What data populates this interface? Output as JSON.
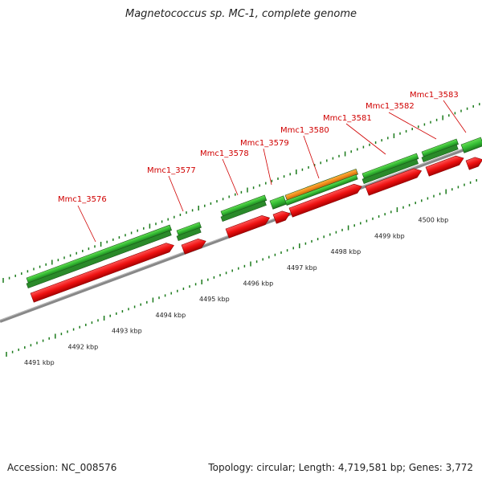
{
  "title": "Magnetococcus sp. MC-1, complete genome",
  "footer": {
    "accession": "Accession: NC_008576",
    "stats": "Topology: circular; Length: 4,719,581 bp; Genes: 3,772"
  },
  "scale": {
    "tick_labels": [
      "4491 kbp",
      "4492 kbp",
      "4493 kbp",
      "4494 kbp",
      "4495 kbp",
      "4496 kbp",
      "4497 kbp",
      "4498 kbp",
      "4499 kbp",
      "4500 kbp"
    ]
  },
  "gene_labels": [
    "Mmc1_3576",
    "Mmc1_3577",
    "Mmc1_3578",
    "Mmc1_3579",
    "Mmc1_3580",
    "Mmc1_3581",
    "Mmc1_3582",
    "Mmc1_3583"
  ],
  "colors": {
    "forward_strand": "#33bb33",
    "reverse_strand": "#ee1111",
    "highlight": "#f28c1a",
    "label": "#d00000",
    "backbone": "#888888",
    "ticks": "#1a7a1a"
  }
}
